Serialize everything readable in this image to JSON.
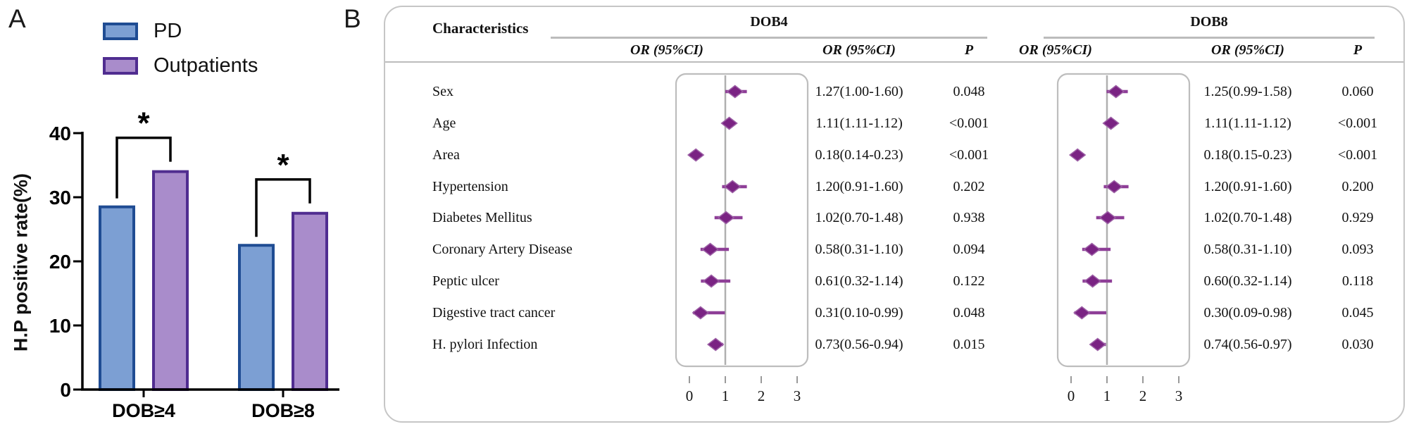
{
  "figure": {
    "panel_a_label": "A",
    "panel_b_label": "B"
  },
  "colors": {
    "pd_fill": "#7C9FD3",
    "pd_stroke": "#1F4C93",
    "outpatients_fill": "#A98CCB",
    "outpatients_stroke": "#502D90",
    "diamond_fill": "#7A2383",
    "diamond_edge": "#9C5FA5",
    "ci_line": "#8E3E97",
    "box_border": "#BDBDBD",
    "ref_line": "#B0B0B0",
    "table_line": "#BCBCBC",
    "axis": "#000000"
  },
  "chart_data": [
    {
      "type": "bar",
      "panel": "A",
      "title": "",
      "xlabel": "",
      "ylabel": "H.P positive rate(%)",
      "ylim": [
        0,
        40
      ],
      "yticks": [
        0,
        10,
        20,
        30,
        40
      ],
      "categories": [
        "DOB≥4",
        "DOB≥8"
      ],
      "series": [
        {
          "name": "PD",
          "values": [
            28.5,
            22.5
          ]
        },
        {
          "name": "Outpatients",
          "values": [
            34,
            27.5
          ]
        }
      ],
      "significance": [
        {
          "category": "DOB≥4",
          "label": "*"
        },
        {
          "category": "DOB≥8",
          "label": "*"
        }
      ],
      "legend_position": "top-left",
      "grid": false
    },
    {
      "type": "forest",
      "panel": "B",
      "group": "DOB4",
      "xticks": [
        0,
        1,
        2,
        3
      ],
      "ref_line": 1,
      "points": [
        {
          "label": "Sex",
          "or": 1.27,
          "lo": 1.0,
          "hi": 1.6
        },
        {
          "label": "Age",
          "or": 1.11,
          "lo": 1.11,
          "hi": 1.12
        },
        {
          "label": "Area",
          "or": 0.18,
          "lo": 0.14,
          "hi": 0.23
        },
        {
          "label": "Hypertension",
          "or": 1.2,
          "lo": 0.91,
          "hi": 1.6
        },
        {
          "label": "Diabetes Mellitus",
          "or": 1.02,
          "lo": 0.7,
          "hi": 1.48
        },
        {
          "label": "Coronary Artery Disease",
          "or": 0.58,
          "lo": 0.31,
          "hi": 1.1
        },
        {
          "label": "Peptic ulcer",
          "or": 0.61,
          "lo": 0.32,
          "hi": 1.14
        },
        {
          "label": "Digestive tract cancer",
          "or": 0.31,
          "lo": 0.1,
          "hi": 0.99
        },
        {
          "label": "H. pylori Infection",
          "or": 0.73,
          "lo": 0.56,
          "hi": 0.94
        }
      ]
    },
    {
      "type": "forest",
      "panel": "B",
      "group": "DOB8",
      "xticks": [
        0,
        1,
        2,
        3
      ],
      "ref_line": 1,
      "points": [
        {
          "label": "Sex",
          "or": 1.25,
          "lo": 0.99,
          "hi": 1.58
        },
        {
          "label": "Age",
          "or": 1.11,
          "lo": 1.11,
          "hi": 1.12
        },
        {
          "label": "Area",
          "or": 0.18,
          "lo": 0.15,
          "hi": 0.23
        },
        {
          "label": "Hypertension",
          "or": 1.2,
          "lo": 0.91,
          "hi": 1.6
        },
        {
          "label": "Diabetes Mellitus",
          "or": 1.02,
          "lo": 0.7,
          "hi": 1.48
        },
        {
          "label": "Coronary Artery Disease",
          "or": 0.58,
          "lo": 0.31,
          "hi": 1.1
        },
        {
          "label": "Peptic ulcer",
          "or": 0.6,
          "lo": 0.32,
          "hi": 1.14
        },
        {
          "label": "Digestive tract cancer",
          "or": 0.3,
          "lo": 0.09,
          "hi": 0.98
        },
        {
          "label": "H. pylori Infection",
          "or": 0.74,
          "lo": 0.56,
          "hi": 0.97
        }
      ]
    }
  ],
  "table": {
    "characteristics_header": "Characteristics",
    "groups": [
      {
        "label": "DOB4",
        "col_headers": [
          "OR (95%CI)",
          "OR (95%CI)",
          "P"
        ]
      },
      {
        "label": "DOB8",
        "col_headers": [
          "OR (95%CI)",
          "OR (95%CI)",
          "P"
        ]
      }
    ],
    "rows": [
      {
        "label": "Sex",
        "dob4_or_ci": "1.27(1.00-1.60)",
        "dob4_p": "0.048",
        "dob8_or_ci": "1.25(0.99-1.58)",
        "dob8_p": "0.060"
      },
      {
        "label": "Age",
        "dob4_or_ci": "1.11(1.11-1.12)",
        "dob4_p": "<0.001",
        "dob8_or_ci": "1.11(1.11-1.12)",
        "dob8_p": "<0.001"
      },
      {
        "label": "Area",
        "dob4_or_ci": "0.18(0.14-0.23)",
        "dob4_p": "<0.001",
        "dob8_or_ci": "0.18(0.15-0.23)",
        "dob8_p": "<0.001"
      },
      {
        "label": "Hypertension",
        "dob4_or_ci": "1.20(0.91-1.60)",
        "dob4_p": "0.202",
        "dob8_or_ci": "1.20(0.91-1.60)",
        "dob8_p": "0.200"
      },
      {
        "label": "Diabetes Mellitus",
        "dob4_or_ci": "1.02(0.70-1.48)",
        "dob4_p": "0.938",
        "dob8_or_ci": "1.02(0.70-1.48)",
        "dob8_p": "0.929"
      },
      {
        "label": "Coronary Artery Disease",
        "dob4_or_ci": "0.58(0.31-1.10)",
        "dob4_p": "0.094",
        "dob8_or_ci": "0.58(0.31-1.10)",
        "dob8_p": "0.093"
      },
      {
        "label": "Peptic ulcer",
        "dob4_or_ci": "0.61(0.32-1.14)",
        "dob4_p": "0.122",
        "dob8_or_ci": "0.60(0.32-1.14)",
        "dob8_p": "0.118"
      },
      {
        "label": "Digestive tract cancer",
        "dob4_or_ci": "0.31(0.10-0.99)",
        "dob4_p": "0.048",
        "dob8_or_ci": "0.30(0.09-0.98)",
        "dob8_p": "0.045"
      },
      {
        "label": "H. pylori Infection",
        "dob4_or_ci": "0.73(0.56-0.94)",
        "dob4_p": "0.015",
        "dob8_or_ci": "0.74(0.56-0.97)",
        "dob8_p": "0.030"
      }
    ]
  }
}
